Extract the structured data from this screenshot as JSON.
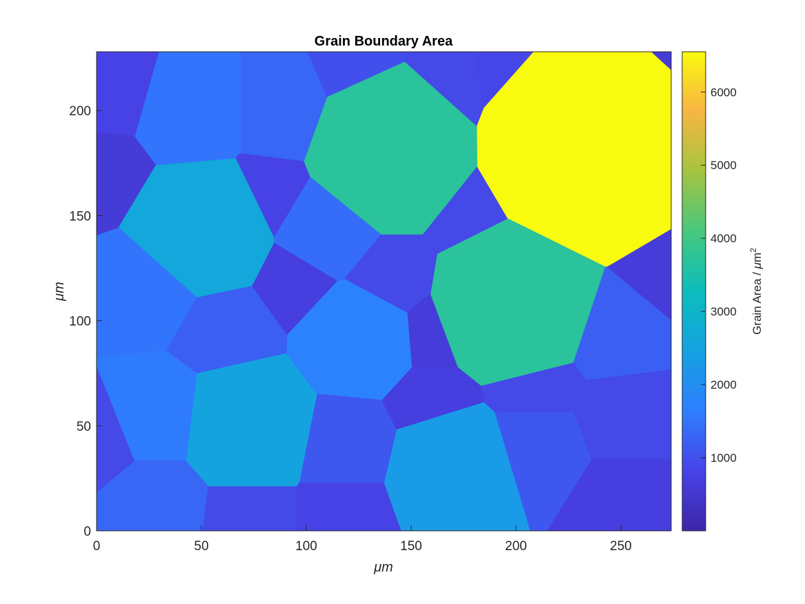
{
  "chart_data": {
    "type": "heatmap",
    "title": "Grain Boundary Area",
    "xlabel": "μm",
    "ylabel": "μm",
    "xlim": [
      0,
      274
    ],
    "ylim": [
      0,
      228
    ],
    "xticks": [
      0,
      50,
      100,
      150,
      200,
      250
    ],
    "yticks": [
      0,
      50,
      100,
      150,
      200
    ],
    "colorbar": {
      "label": "Grain Area / μm²",
      "label_text": "Grain Area /",
      "label_mu": "μ",
      "label_m": "m",
      "label_exp": "2",
      "range": [
        0,
        6550
      ],
      "ticks": [
        1000,
        2000,
        3000,
        4000,
        5000,
        6000
      ],
      "colormap": "parula"
    },
    "grains": [
      {
        "cx": 236,
        "cy": 183,
        "area": 6550
      },
      {
        "cx": 140,
        "cy": 182,
        "area": 3700
      },
      {
        "cx": 200,
        "cy": 110,
        "area": 3700
      },
      {
        "cx": 50,
        "cy": 143,
        "area": 2600
      },
      {
        "cx": 70,
        "cy": 50,
        "area": 2500
      },
      {
        "cx": 170,
        "cy": 28,
        "area": 2300
      },
      {
        "cx": 30,
        "cy": 55,
        "area": 1600
      },
      {
        "cx": 25,
        "cy": 115,
        "area": 1500
      },
      {
        "cx": 125,
        "cy": 92,
        "area": 1700
      },
      {
        "cx": 110,
        "cy": 145,
        "area": 1400
      },
      {
        "cx": 90,
        "cy": 200,
        "area": 1300
      },
      {
        "cx": 45,
        "cy": 200,
        "area": 1500
      },
      {
        "cx": 60,
        "cy": 95,
        "area": 1200
      },
      {
        "cx": 30,
        "cy": 15,
        "area": 1300
      },
      {
        "cx": 70,
        "cy": 10,
        "area": 900
      },
      {
        "cx": 120,
        "cy": 40,
        "area": 1100
      },
      {
        "cx": 120,
        "cy": 10,
        "area": 800
      },
      {
        "cx": 210,
        "cy": 40,
        "area": 1100
      },
      {
        "cx": 245,
        "cy": 95,
        "area": 1200
      },
      {
        "cx": 250,
        "cy": 55,
        "area": 900
      },
      {
        "cx": 250,
        "cy": 15,
        "area": 700
      },
      {
        "cx": 210,
        "cy": 70,
        "area": 900
      },
      {
        "cx": 180,
        "cy": 150,
        "area": 900
      },
      {
        "cx": 165,
        "cy": 210,
        "area": 900
      },
      {
        "cx": 10,
        "cy": 210,
        "area": 800
      },
      {
        "cx": 5,
        "cy": 170,
        "area": 600
      },
      {
        "cx": 95,
        "cy": 120,
        "area": 700
      },
      {
        "cx": 160,
        "cy": 60,
        "area": 700
      },
      {
        "cx": 140,
        "cy": 120,
        "area": 900
      },
      {
        "cx": 85,
        "cy": 160,
        "area": 800
      },
      {
        "cx": 200,
        "cy": 215,
        "area": 850
      },
      {
        "cx": 5,
        "cy": 45,
        "area": 900
      },
      {
        "cx": 160,
        "cy": 95,
        "area": 650
      },
      {
        "cx": 270,
        "cy": 125,
        "area": 650
      },
      {
        "cx": 265,
        "cy": 215,
        "area": 600
      },
      {
        "cx": 125,
        "cy": 215,
        "area": 1000
      }
    ]
  }
}
